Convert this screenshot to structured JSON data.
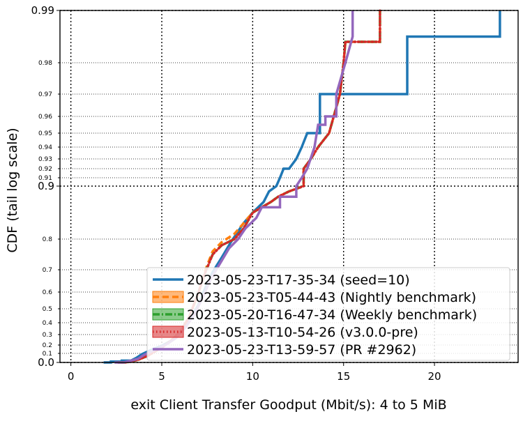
{
  "chart_data": {
    "type": "line",
    "title": "",
    "xlabel": "exit Client Transfer Goodput (Mbit/s): 4 to 5 MiB",
    "ylabel": "CDF (tail log scale)",
    "xlim": [
      -0.6,
      24.6
    ],
    "x_ticks": [
      0,
      5,
      10,
      15,
      20
    ],
    "y_ticks": [
      {
        "v": 0.0,
        "label": "0.0",
        "major": true
      },
      {
        "v": 0.1,
        "label": "0.1",
        "major": false
      },
      {
        "v": 0.2,
        "label": "0.2",
        "major": false
      },
      {
        "v": 0.3,
        "label": "0.3",
        "major": false
      },
      {
        "v": 0.4,
        "label": "0.4",
        "major": false
      },
      {
        "v": 0.5,
        "label": "0.5",
        "major": false
      },
      {
        "v": 0.6,
        "label": "0.6",
        "major": false
      },
      {
        "v": 0.7,
        "label": "0.7",
        "major": false
      },
      {
        "v": 0.8,
        "label": "0.8",
        "major": false
      },
      {
        "v": 0.9,
        "label": "0.9",
        "major": true
      },
      {
        "v": 0.91,
        "label": "0.91",
        "major": false
      },
      {
        "v": 0.92,
        "label": "0.92",
        "major": false
      },
      {
        "v": 0.93,
        "label": "0.93",
        "major": false
      },
      {
        "v": 0.94,
        "label": "0.94",
        "major": false
      },
      {
        "v": 0.95,
        "label": "0.95",
        "major": false
      },
      {
        "v": 0.96,
        "label": "0.96",
        "major": false
      },
      {
        "v": 0.97,
        "label": "0.97",
        "major": false
      },
      {
        "v": 0.98,
        "label": "0.98",
        "major": false
      },
      {
        "v": 0.99,
        "label": "0.99",
        "major": true
      }
    ],
    "grid": true,
    "legend_position": "lower-right",
    "series": [
      {
        "name": "2023-05-23-T17-35-34 (seed=10)",
        "color": "#1f77b4",
        "dash": "solid",
        "points": [
          [
            1.8,
            0.0
          ],
          [
            2.2,
            0.0
          ],
          [
            2.2,
            0.01
          ],
          [
            2.8,
            0.01
          ],
          [
            2.8,
            0.02
          ],
          [
            3.3,
            0.02
          ],
          [
            3.6,
            0.05
          ],
          [
            3.9,
            0.09
          ],
          [
            4.2,
            0.12
          ],
          [
            4.5,
            0.15
          ],
          [
            5.0,
            0.19
          ],
          [
            5.5,
            0.24
          ],
          [
            6.0,
            0.31
          ],
          [
            6.5,
            0.41
          ],
          [
            7.0,
            0.52
          ],
          [
            7.4,
            0.62
          ],
          [
            7.8,
            0.69
          ],
          [
            8.3,
            0.74
          ],
          [
            8.8,
            0.79
          ],
          [
            9.5,
            0.83
          ],
          [
            10.0,
            0.85
          ],
          [
            10.6,
            0.87
          ],
          [
            10.9,
            0.89
          ],
          [
            11.3,
            0.9
          ],
          [
            11.5,
            0.91
          ],
          [
            11.7,
            0.92
          ],
          [
            12.0,
            0.92
          ],
          [
            12.4,
            0.93
          ],
          [
            12.7,
            0.94
          ],
          [
            13.0,
            0.95
          ],
          [
            13.7,
            0.95
          ],
          [
            13.7,
            0.97
          ],
          [
            18.5,
            0.97
          ],
          [
            18.5,
            0.985
          ],
          [
            23.6,
            0.985
          ],
          [
            23.6,
            0.99
          ]
        ]
      },
      {
        "name": "2023-05-23-T05-44-43 (Nightly benchmark)",
        "color": "#ff7f0e",
        "dash": "dashed",
        "points": [
          [
            2.6,
            0.0
          ],
          [
            3.0,
            0.0
          ],
          [
            3.3,
            0.01
          ],
          [
            3.7,
            0.03
          ],
          [
            4.2,
            0.07
          ],
          [
            4.6,
            0.12
          ],
          [
            5.0,
            0.17
          ],
          [
            5.5,
            0.24
          ],
          [
            6.0,
            0.32
          ],
          [
            6.5,
            0.44
          ],
          [
            7.0,
            0.59
          ],
          [
            7.4,
            0.7
          ],
          [
            7.8,
            0.76
          ],
          [
            8.3,
            0.79
          ],
          [
            9.0,
            0.81
          ],
          [
            9.5,
            0.83
          ],
          [
            10.0,
            0.85
          ],
          [
            11.0,
            0.87
          ],
          [
            11.4,
            0.88
          ],
          [
            12.0,
            0.89
          ],
          [
            12.8,
            0.9
          ],
          [
            12.8,
            0.92
          ],
          [
            13.2,
            0.93
          ],
          [
            13.6,
            0.94
          ],
          [
            14.2,
            0.95
          ],
          [
            14.8,
            0.97
          ],
          [
            15.0,
            0.98
          ],
          [
            15.1,
            0.984
          ],
          [
            17.0,
            0.984
          ],
          [
            17.0,
            0.99
          ]
        ]
      },
      {
        "name": "2023-05-20-T16-47-34 (Weekly benchmark)",
        "color": "#2ca02c",
        "dash": "dashdot",
        "points": [
          [
            2.6,
            0.0
          ],
          [
            3.0,
            0.0
          ],
          [
            3.3,
            0.01
          ],
          [
            3.7,
            0.03
          ],
          [
            4.2,
            0.07
          ],
          [
            4.6,
            0.12
          ],
          [
            5.0,
            0.17
          ],
          [
            5.5,
            0.24
          ],
          [
            6.0,
            0.32
          ],
          [
            6.5,
            0.44
          ],
          [
            7.0,
            0.59
          ],
          [
            7.4,
            0.69
          ],
          [
            7.8,
            0.75
          ],
          [
            8.3,
            0.78
          ],
          [
            9.0,
            0.8
          ],
          [
            9.5,
            0.82
          ],
          [
            10.0,
            0.85
          ],
          [
            11.0,
            0.87
          ],
          [
            11.4,
            0.88
          ],
          [
            12.0,
            0.89
          ],
          [
            12.8,
            0.9
          ],
          [
            12.8,
            0.92
          ],
          [
            13.2,
            0.93
          ],
          [
            13.6,
            0.94
          ],
          [
            14.2,
            0.95
          ],
          [
            14.8,
            0.97
          ],
          [
            15.0,
            0.98
          ],
          [
            15.1,
            0.984
          ],
          [
            17.0,
            0.984
          ],
          [
            17.0,
            0.99
          ]
        ]
      },
      {
        "name": "2023-05-13-T10-54-26 (v3.0.0-pre)",
        "color": "#d62728",
        "dash": "dotted",
        "points": [
          [
            2.6,
            0.0
          ],
          [
            3.0,
            0.0
          ],
          [
            3.3,
            0.01
          ],
          [
            3.7,
            0.03
          ],
          [
            4.2,
            0.07
          ],
          [
            4.6,
            0.12
          ],
          [
            5.0,
            0.17
          ],
          [
            5.5,
            0.24
          ],
          [
            6.0,
            0.32
          ],
          [
            6.5,
            0.44
          ],
          [
            7.0,
            0.59
          ],
          [
            7.4,
            0.69
          ],
          [
            7.8,
            0.75
          ],
          [
            8.3,
            0.78
          ],
          [
            9.0,
            0.8
          ],
          [
            9.5,
            0.82
          ],
          [
            10.0,
            0.85
          ],
          [
            11.0,
            0.87
          ],
          [
            11.4,
            0.88
          ],
          [
            12.0,
            0.89
          ],
          [
            12.8,
            0.9
          ],
          [
            12.8,
            0.92
          ],
          [
            13.2,
            0.93
          ],
          [
            13.6,
            0.94
          ],
          [
            14.2,
            0.95
          ],
          [
            14.8,
            0.97
          ],
          [
            15.0,
            0.98
          ],
          [
            15.1,
            0.984
          ],
          [
            17.0,
            0.984
          ],
          [
            17.0,
            0.99
          ]
        ]
      },
      {
        "name": "2023-05-23-T13-59-57 (PR #2962)",
        "color": "#9467bd",
        "dash": "solid",
        "points": [
          [
            2.4,
            0.0
          ],
          [
            2.9,
            0.0
          ],
          [
            3.3,
            0.02
          ],
          [
            3.7,
            0.04
          ],
          [
            4.0,
            0.08
          ],
          [
            4.4,
            0.12
          ],
          [
            4.8,
            0.16
          ],
          [
            5.3,
            0.21
          ],
          [
            5.8,
            0.27
          ],
          [
            6.3,
            0.36
          ],
          [
            6.8,
            0.46
          ],
          [
            7.3,
            0.58
          ],
          [
            7.7,
            0.66
          ],
          [
            8.2,
            0.72
          ],
          [
            8.7,
            0.77
          ],
          [
            9.2,
            0.8
          ],
          [
            9.6,
            0.82
          ],
          [
            10.2,
            0.84
          ],
          [
            10.5,
            0.86
          ],
          [
            11.5,
            0.86
          ],
          [
            11.5,
            0.88
          ],
          [
            12.4,
            0.88
          ],
          [
            12.4,
            0.9
          ],
          [
            12.7,
            0.91
          ],
          [
            13.0,
            0.92
          ],
          [
            13.4,
            0.94
          ],
          [
            13.6,
            0.955
          ],
          [
            14.0,
            0.955
          ],
          [
            14.0,
            0.96
          ],
          [
            14.6,
            0.96
          ],
          [
            14.6,
            0.97
          ],
          [
            15.1,
            0.98
          ],
          [
            15.5,
            0.985
          ],
          [
            15.5,
            0.99
          ]
        ]
      }
    ]
  }
}
